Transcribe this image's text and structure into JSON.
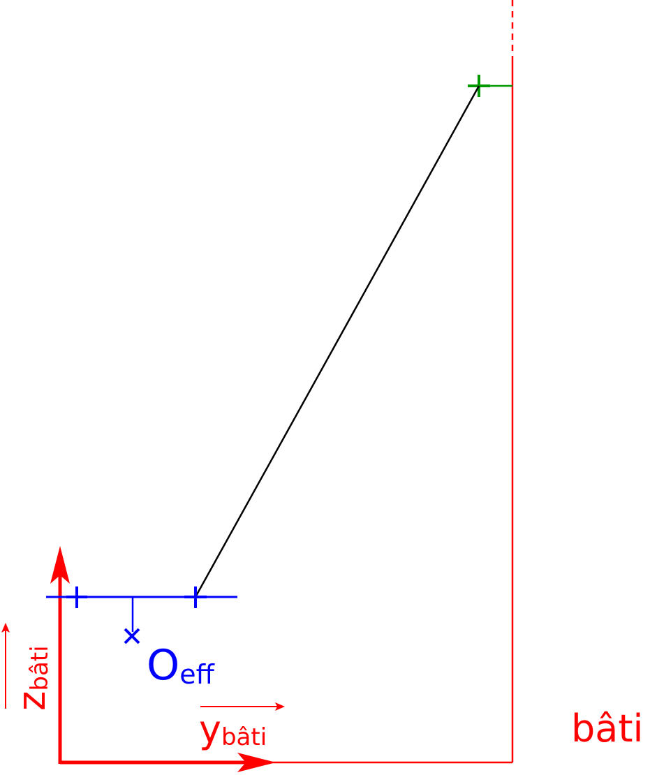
{
  "labels": {
    "z_axis": {
      "main": "z",
      "sub": "bâti"
    },
    "y_axis": {
      "main": "y",
      "sub": "bâti"
    },
    "origin": {
      "main": "O",
      "sub": "eff"
    },
    "frame": "bâti"
  }
}
